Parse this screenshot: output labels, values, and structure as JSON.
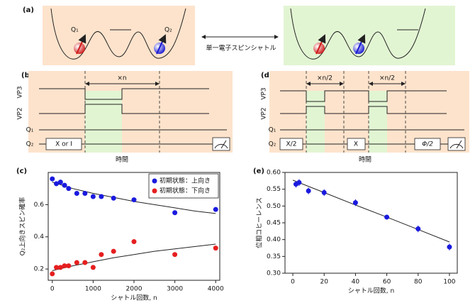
{
  "panel_a": {
    "label": "(a)",
    "q1": "Q₁",
    "q2": "Q₂",
    "arrow_text": "単一電子スピンシャトル"
  },
  "panel_b": {
    "label": "(b)",
    "repeat": "×n",
    "vp3": "VP3",
    "vp2": "VP2",
    "q1": "Q₁",
    "q2": "Q₂",
    "gate": "X or I",
    "xlabel": "時間"
  },
  "panel_d": {
    "label": "(d)",
    "repeat_1": "×n/2",
    "repeat_2": "×n/2",
    "vp3": "VP3",
    "vp2": "VP2",
    "q1": "Q₁",
    "q2": "Q₂",
    "gate_1": "X/2",
    "gate_2": "X",
    "gate_3": "Φ/2",
    "xlabel": "時間"
  },
  "chart_data": [
    {
      "type": "scatter",
      "panel_label": "(c)",
      "xlabel": "シャトル回数, n",
      "ylabel": "Q₂上向きスピン確率",
      "x": [
        0,
        100,
        200,
        300,
        400,
        600,
        800,
        1000,
        1200,
        1500,
        2000,
        3000,
        4000
      ],
      "series": [
        {
          "name": "初期状態：上向き",
          "color": "#1a1adf",
          "values": [
            0.76,
            0.73,
            0.74,
            0.72,
            0.7,
            0.67,
            0.67,
            0.65,
            0.65,
            0.64,
            0.63,
            0.55,
            0.57
          ]
        },
        {
          "name": "初期状態：下向き",
          "color": "#e61e1e",
          "values": [
            0.17,
            0.21,
            0.21,
            0.22,
            0.22,
            0.24,
            0.24,
            0.21,
            0.29,
            0.31,
            0.37,
            0.29,
            0.33
          ]
        }
      ],
      "fits": [
        {
          "color": "#222",
          "x": [
            0,
            500,
            1000,
            1500,
            2000,
            2500,
            3000,
            3500,
            4000
          ],
          "values": [
            0.74,
            0.7,
            0.67,
            0.645,
            0.62,
            0.6,
            0.58,
            0.56,
            0.545
          ]
        },
        {
          "color": "#222",
          "x": [
            0,
            500,
            1000,
            1500,
            2000,
            2500,
            3000,
            3500,
            4000
          ],
          "values": [
            0.19,
            0.22,
            0.245,
            0.27,
            0.29,
            0.31,
            0.325,
            0.34,
            0.355
          ]
        }
      ],
      "xlim": [
        -100,
        4100
      ],
      "xticks": [
        0,
        1000,
        2000,
        3000,
        4000
      ],
      "ylim": [
        0.13,
        0.8
      ],
      "yticks": [
        0.2,
        0.4,
        0.6
      ],
      "legend": "upper right"
    },
    {
      "type": "scatter",
      "panel_label": "(e)",
      "xlabel": "シャトル回数, n",
      "ylabel": "位相コヒーレンス",
      "x": [
        2,
        4,
        10,
        20,
        40,
        60,
        80,
        100
      ],
      "series": [
        {
          "color": "#1a1adf",
          "values": [
            0.565,
            0.57,
            0.545,
            0.54,
            0.51,
            0.467,
            0.432,
            0.378
          ],
          "errors": [
            0.01,
            0.01,
            0.01,
            0.01,
            0.01,
            0.007,
            0.01,
            0.01
          ]
        }
      ],
      "fits": [
        {
          "color": "#222",
          "x": [
            0,
            20,
            40,
            60,
            80,
            100
          ],
          "values": [
            0.577,
            0.54,
            0.503,
            0.467,
            0.43,
            0.393
          ]
        }
      ],
      "xlim": [
        -5,
        105
      ],
      "xticks": [
        0,
        20,
        40,
        60,
        80,
        100
      ],
      "ylim": [
        0.3,
        0.6
      ],
      "yticks": [
        {
          "value": 0.3,
          "label": "0.30"
        },
        {
          "value": 0.35,
          "label": "0.35"
        },
        {
          "value": 0.4,
          "label": "0.40"
        },
        {
          "value": 0.45,
          "label": "0.45"
        },
        {
          "value": 0.5,
          "label": "0.50"
        },
        {
          "value": 0.55,
          "label": "0.55"
        },
        {
          "value": 0.6,
          "label": "0.60"
        }
      ]
    }
  ]
}
